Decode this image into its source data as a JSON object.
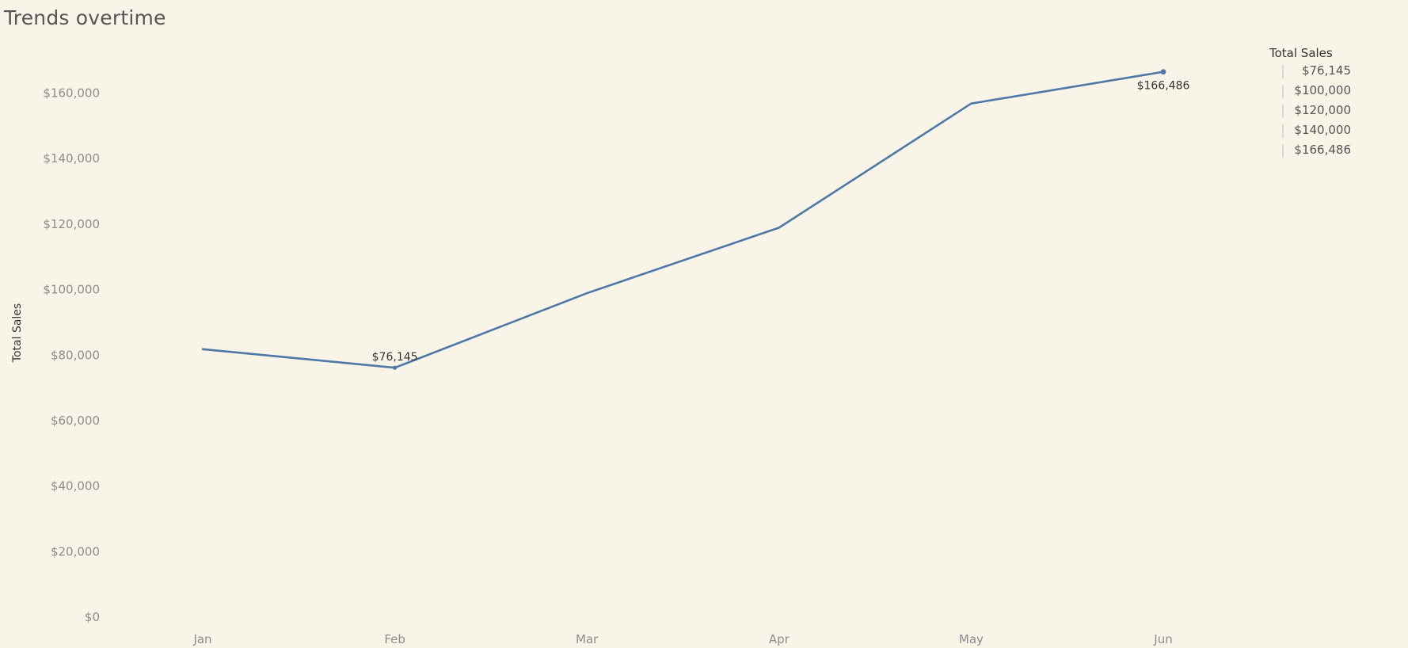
{
  "page": {
    "title": "Trends overtime"
  },
  "colors": {
    "background": "#f9f4e8",
    "line": "#4e79a7",
    "tick_text": "#8c8c8c",
    "legend_swatch": "#d9d9d9"
  },
  "chart_data": {
    "type": "line",
    "title": "Trends overtime",
    "xlabel": "",
    "ylabel": "Total Sales",
    "categories": [
      "Jan",
      "Feb",
      "Mar",
      "Apr",
      "May",
      "Jun"
    ],
    "series": [
      {
        "name": "Total Sales",
        "values": [
          81800,
          76145,
          98900,
          118900,
          156800,
          166486
        ]
      }
    ],
    "ylim": [
      0,
      170000
    ],
    "yticks": [
      {
        "value": 0,
        "label": "$0"
      },
      {
        "value": 20000,
        "label": "$20,000"
      },
      {
        "value": 40000,
        "label": "$40,000"
      },
      {
        "value": 60000,
        "label": "$60,000"
      },
      {
        "value": 80000,
        "label": "$80,000"
      },
      {
        "value": 100000,
        "label": "$100,000"
      },
      {
        "value": 120000,
        "label": "$120,000"
      },
      {
        "value": 140000,
        "label": "$140,000"
      },
      {
        "value": 160000,
        "label": "$160,000"
      }
    ],
    "grid": false,
    "data_labels": [
      {
        "category": "Feb",
        "value": 76145,
        "label": "$76,145",
        "position": "above"
      },
      {
        "category": "Jun",
        "value": 166486,
        "label": "$166,486",
        "position": "below"
      }
    ],
    "legend": {
      "placement": "top-right",
      "title": "Total Sales",
      "items": [
        "$76,145",
        "$100,000",
        "$120,000",
        "$140,000",
        "$166,486"
      ]
    }
  }
}
